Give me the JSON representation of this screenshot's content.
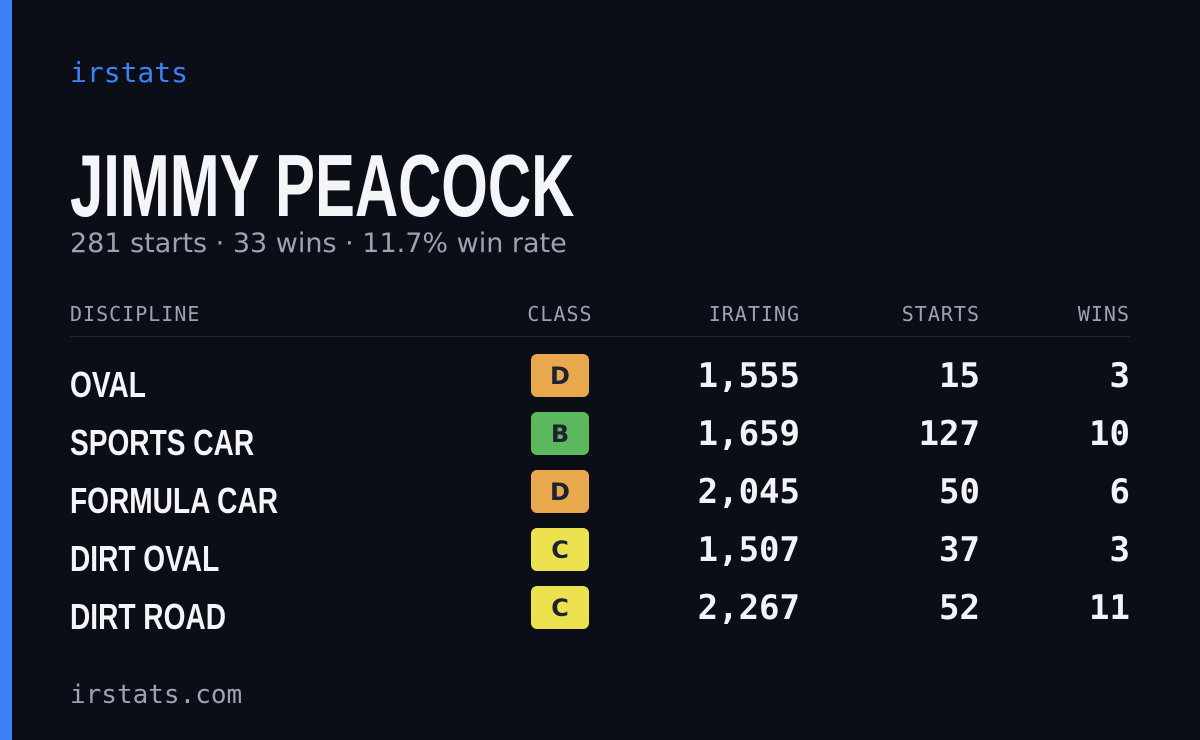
{
  "brand": "irstats",
  "driver": {
    "name": "JIMMY PEACOCK",
    "summary": "281 starts · 33 wins · 11.7% win rate"
  },
  "table": {
    "headers": [
      "DISCIPLINE",
      "CLASS",
      "IRATING",
      "STARTS",
      "WINS"
    ],
    "rows": [
      {
        "discipline": "OVAL",
        "class": "D",
        "class_color": "#e9a84c",
        "irating": "1,555",
        "starts": "15",
        "wins": "3"
      },
      {
        "discipline": "SPORTS CAR",
        "class": "B",
        "class_color": "#5cb85c",
        "irating": "1,659",
        "starts": "127",
        "wins": "10"
      },
      {
        "discipline": "FORMULA CAR",
        "class": "D",
        "class_color": "#e9a84c",
        "irating": "2,045",
        "starts": "50",
        "wins": "6"
      },
      {
        "discipline": "DIRT OVAL",
        "class": "C",
        "class_color": "#ece24f",
        "irating": "1,507",
        "starts": "37",
        "wins": "3"
      },
      {
        "discipline": "DIRT ROAD",
        "class": "C",
        "class_color": "#ece24f",
        "irating": "2,267",
        "starts": "52",
        "wins": "11"
      }
    ]
  },
  "footer": "irstats.com"
}
